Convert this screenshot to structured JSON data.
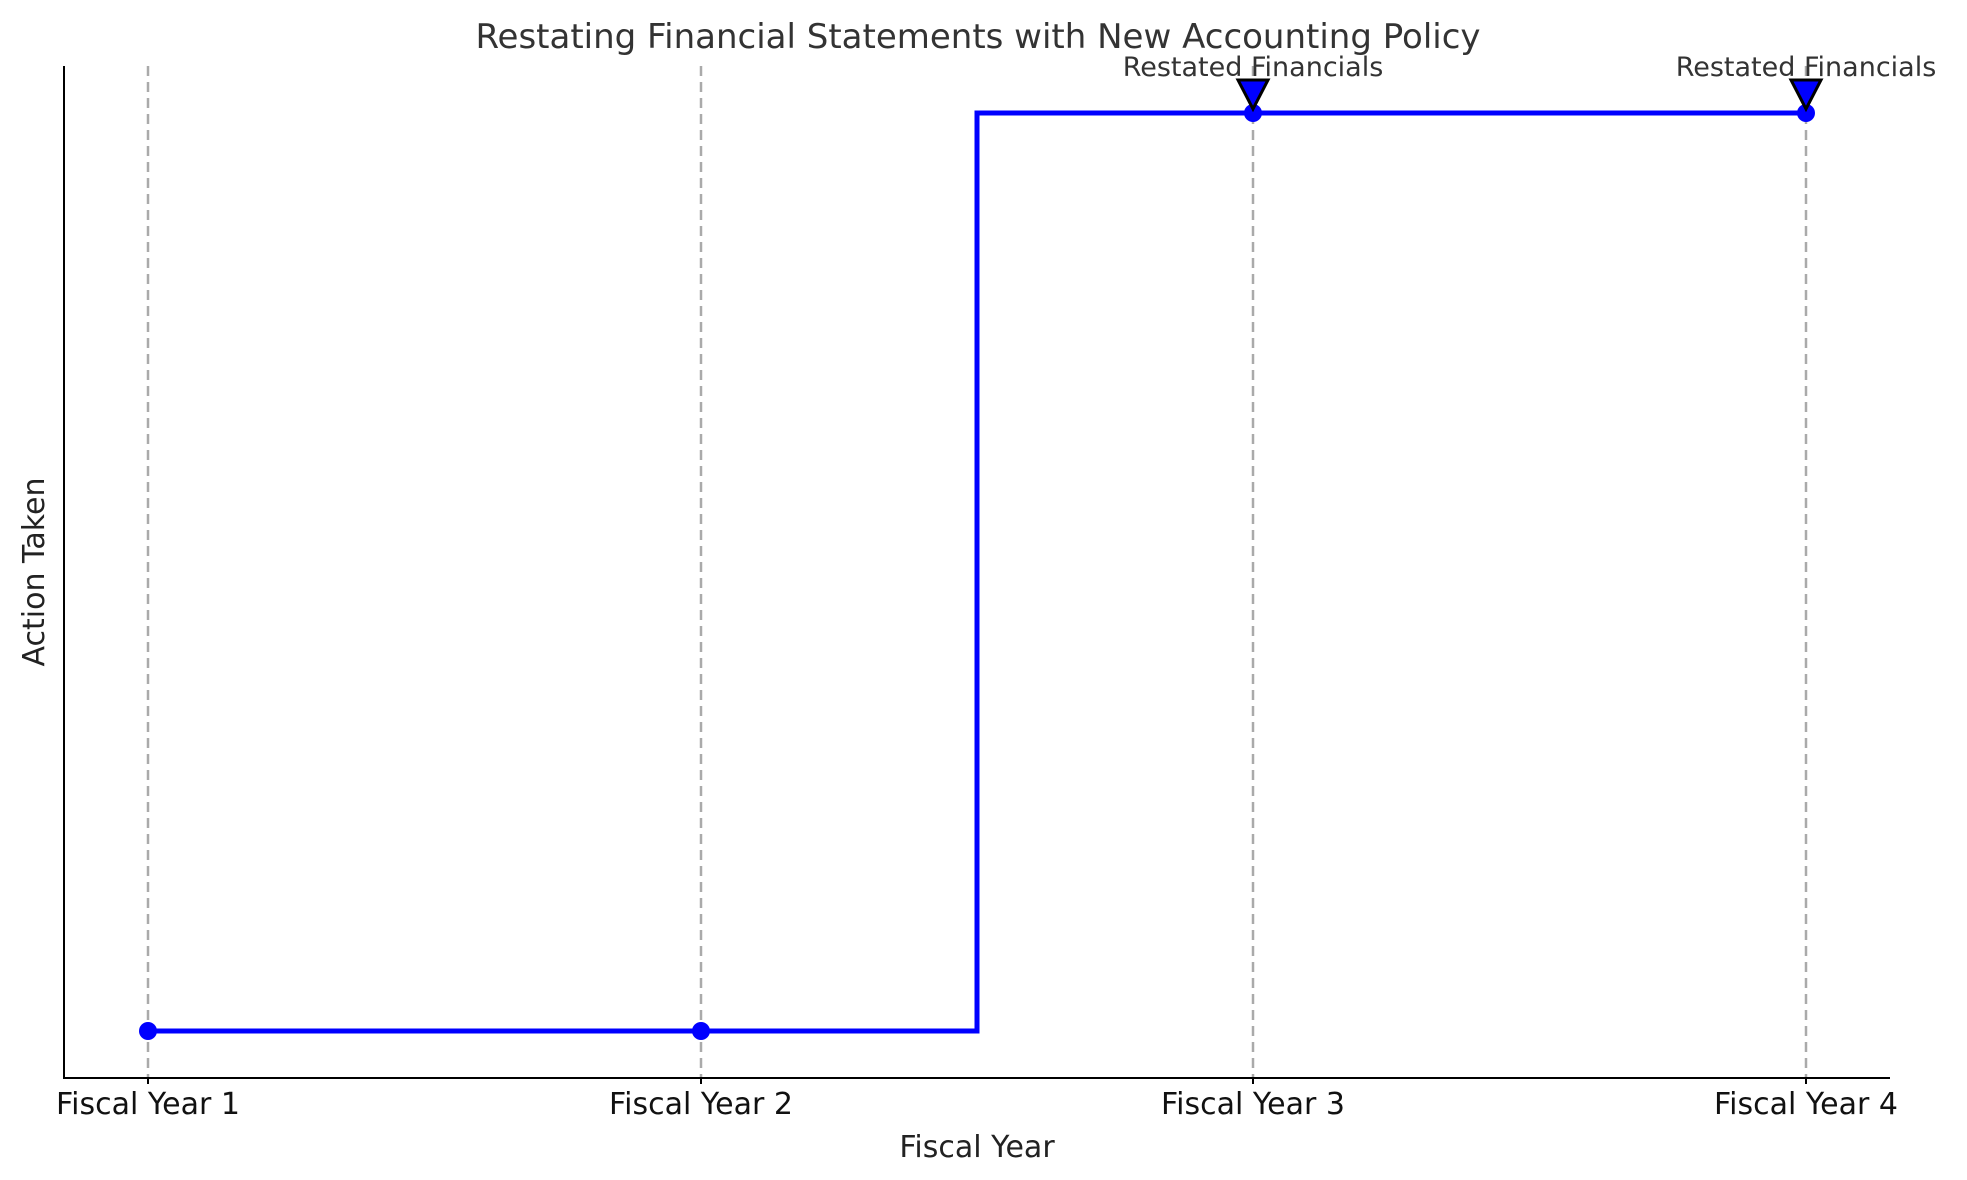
{
  "chart_data": {
    "type": "line",
    "title": "Restating Financial Statements with New Accounting Policy",
    "xlabel": "Fiscal Year",
    "ylabel": "Action Taken",
    "categories": [
      "Fiscal Year 1",
      "Fiscal Year 2",
      "Fiscal Year 3",
      "Fiscal Year 4"
    ],
    "series": [
      {
        "values": [
          0,
          0,
          1,
          1
        ],
        "color": "#0000ff",
        "step": "mid",
        "marker": "circle"
      }
    ],
    "ylim": [
      -0.05,
      1.05
    ],
    "y_ticks_visible": false,
    "grid": "vertical dashed",
    "grid_color": "#aaaaaa",
    "annotations": [
      {
        "text": "Restated Financials",
        "category_index": 2,
        "y": 1,
        "arrow": "down-triangle"
      },
      {
        "text": "Restated Financials",
        "category_index": 3,
        "y": 1,
        "arrow": "down-triangle"
      }
    ]
  }
}
